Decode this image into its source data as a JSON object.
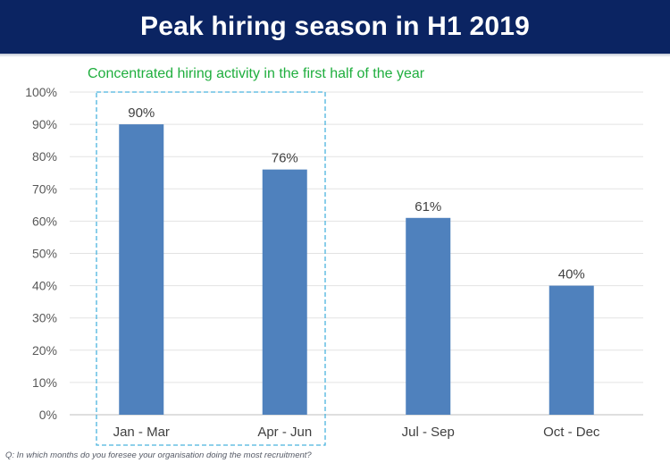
{
  "header": {
    "title": "Peak hiring season in H1 2019"
  },
  "subtitle": "Concentrated hiring activity in the first half of the year",
  "footnote": "Q: In which months do you foresee your organisation doing the most recruitment?",
  "colors": {
    "header_bg": "#0b2462",
    "bar": "#4f81bd",
    "highlight_box": "#4bb4de",
    "subtitle": "#1fae3e"
  },
  "chart_data": {
    "type": "bar",
    "title": "",
    "xlabel": "",
    "ylabel": "",
    "categories": [
      "Jan - Mar",
      "Apr - Jun",
      "Jul - Sep",
      "Oct - Dec"
    ],
    "values": [
      90,
      76,
      61,
      40
    ],
    "value_labels": [
      "90%",
      "76%",
      "61%",
      "40%"
    ],
    "ylim": [
      0,
      100
    ],
    "yticks": [
      0,
      10,
      20,
      30,
      40,
      50,
      60,
      70,
      80,
      90,
      100
    ],
    "ytick_labels": [
      "0%",
      "10%",
      "20%",
      "30%",
      "40%",
      "50%",
      "60%",
      "70%",
      "80%",
      "90%",
      "100%"
    ],
    "grid": true,
    "legend": "none",
    "highlighted_categories": [
      "Jan - Mar",
      "Apr - Jun"
    ]
  }
}
